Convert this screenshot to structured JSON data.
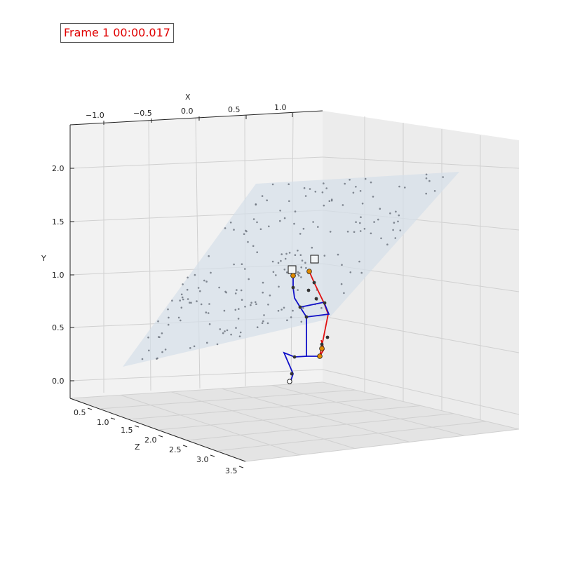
{
  "frame_label": "Frame 1 00:00.017",
  "chart_data": {
    "type": "scatter",
    "title": "",
    "axes": {
      "x": {
        "label": "X",
        "ticks": [
          "−1.0",
          "−0.5",
          "0.0",
          "0.5",
          "1.0"
        ]
      },
      "y": {
        "label": "Y",
        "ticks": [
          "0.0",
          "0.5",
          "1.0",
          "1.5",
          "2.0"
        ]
      },
      "z": {
        "label": "Z",
        "ticks": [
          "0.5",
          "1.0",
          "1.5",
          "2.0",
          "2.5",
          "3.0",
          "3.5"
        ]
      }
    },
    "grid": true,
    "ground_plane": {
      "color": "#d6e0ea",
      "opacity": 0.7
    },
    "point_color": "#6f7680",
    "skeleton": {
      "left_color": "#1010c8",
      "right_color": "#e01010",
      "spine_color": "#111111",
      "joint_color": "#e08a00"
    }
  }
}
